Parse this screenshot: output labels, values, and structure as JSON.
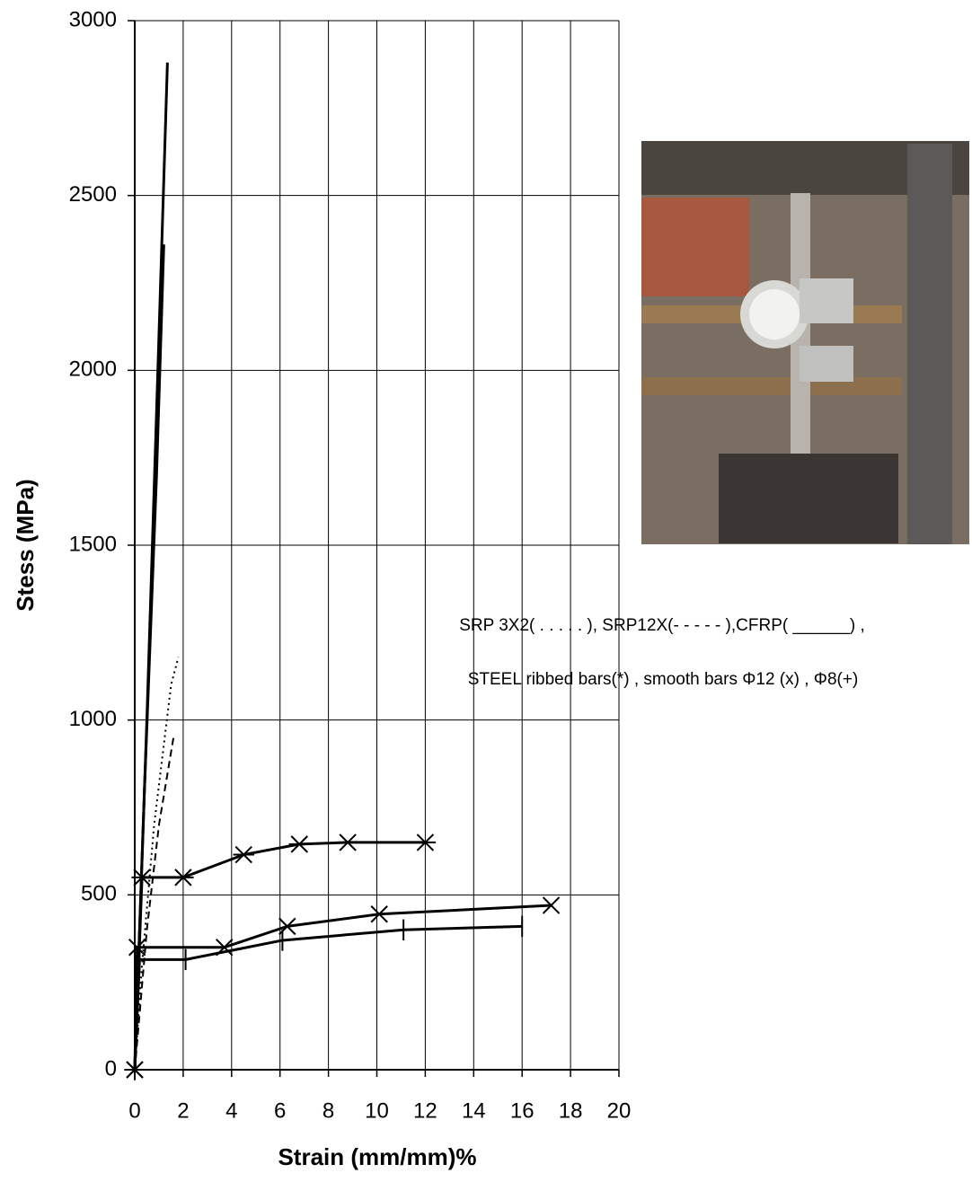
{
  "chart_data": {
    "type": "line",
    "xlabel": "Strain (mm/mm)%",
    "ylabel": "Stess (MPa)",
    "legend_text": [
      "SRP 3X2( . . . . . ), SRP12X(- - - - - ),CFRP( ______) ,",
      "STEEL ribbed bars(*) , smooth bars Φ12 (x) , Φ8(+)"
    ],
    "xlim": [
      0,
      20
    ],
    "ylim": [
      0,
      3000
    ],
    "xticks": [
      0,
      2,
      4,
      6,
      8,
      10,
      12,
      14,
      16,
      18,
      20
    ],
    "yticks": [
      0,
      500,
      1000,
      1500,
      2000,
      2500,
      3000
    ],
    "grid": true,
    "series": [
      {
        "color": "#000000",
        "style": "solid",
        "marker": "none",
        "x": [
          0,
          0.5,
          1.0,
          1.35
        ],
        "values": [
          0,
          1000,
          2100,
          2880
        ]
      },
      {
        "color": "#000000",
        "style": "solid",
        "marker": "none",
        "x": [
          0,
          0.4,
          0.9,
          1.2
        ],
        "values": [
          0,
          800,
          1700,
          2360
        ]
      },
      {
        "color": "#000000",
        "style": "dotted",
        "marker": "none",
        "x": [
          0,
          0.3,
          0.8,
          1.5,
          1.8
        ],
        "values": [
          0,
          300,
          700,
          1100,
          1180
        ]
      },
      {
        "color": "#000000",
        "style": "dashed",
        "marker": "none",
        "x": [
          0,
          0.5,
          1.0,
          1.6
        ],
        "values": [
          0,
          400,
          700,
          950
        ]
      },
      {
        "color": "#000000",
        "style": "solid",
        "marker": "asterisk",
        "x": [
          0,
          0.3,
          2.0,
          4.5,
          6.8,
          8.8,
          12.0
        ],
        "values": [
          0,
          550,
          550,
          615,
          645,
          650,
          650
        ]
      },
      {
        "color": "#000000",
        "style": "solid",
        "marker": "x",
        "x": [
          0,
          0.1,
          3.7,
          6.3,
          10.1,
          17.2
        ],
        "values": [
          0,
          350,
          350,
          410,
          445,
          470
        ]
      },
      {
        "color": "#000000",
        "style": "solid",
        "marker": "plus",
        "x": [
          0,
          0.2,
          2.1,
          6.1,
          11.1,
          16.0
        ],
        "values": [
          0,
          315,
          315,
          370,
          400,
          410
        ]
      }
    ]
  }
}
